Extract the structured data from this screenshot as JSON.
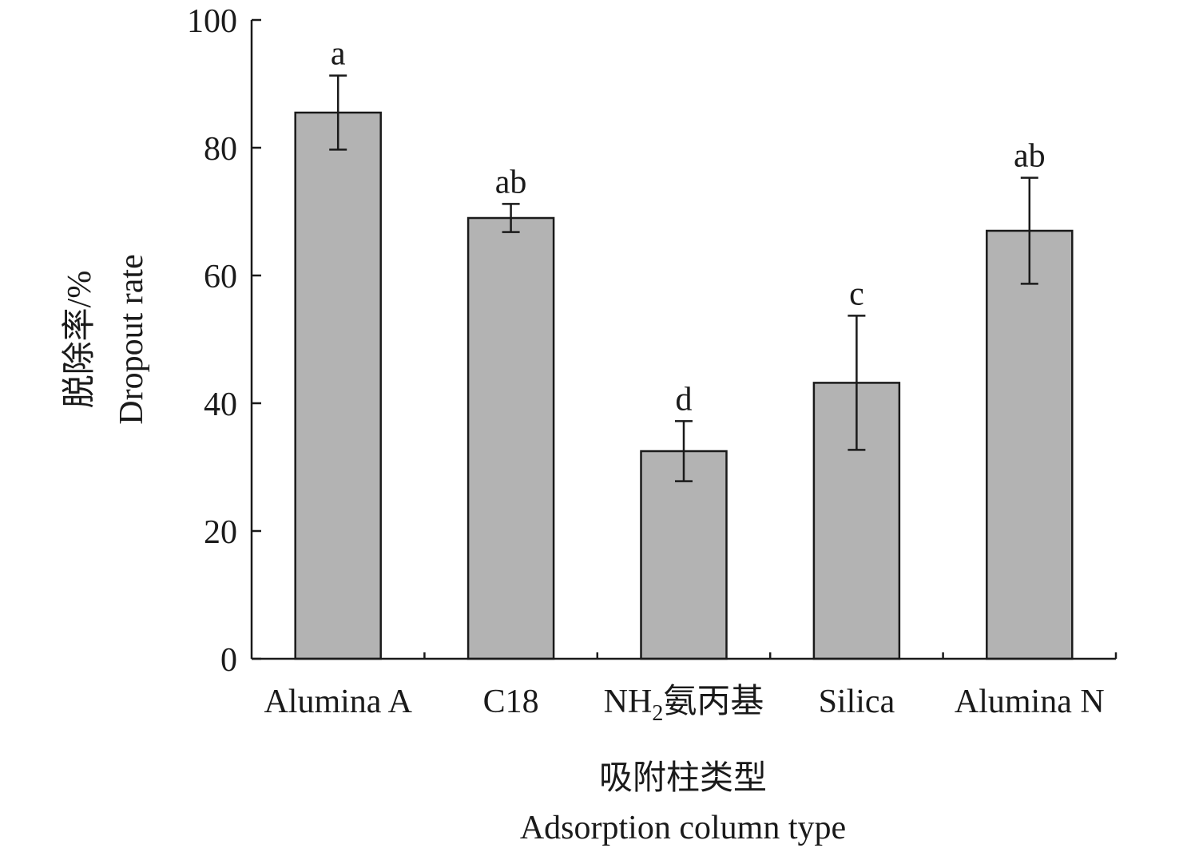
{
  "chart_data": {
    "type": "bar",
    "categories": [
      "Alumina A",
      "C18",
      "NH",
      "Silica",
      "Alumina N"
    ],
    "category_subscripts": [
      "",
      "",
      "2",
      "",
      ""
    ],
    "category_suffixes": [
      "",
      "",
      "氨丙基",
      "",
      ""
    ],
    "values": [
      85.5,
      69.0,
      32.5,
      43.2,
      67.0
    ],
    "errors": [
      5.8,
      2.2,
      4.7,
      10.5,
      8.3
    ],
    "significance": [
      "a",
      "ab",
      "d",
      "c",
      "ab"
    ],
    "ylim": [
      0,
      100
    ],
    "yticks": [
      0,
      20,
      40,
      60,
      80,
      100
    ],
    "ylabel_lines": [
      "脱除率/%",
      "Dropout rate"
    ],
    "xlabel_lines": [
      "吸附柱类型",
      "Adsorption column type"
    ],
    "colors": {
      "bar_fill": "#b3b3b3",
      "stroke": "#1a1a1a"
    },
    "grid": false,
    "legend": "none"
  }
}
